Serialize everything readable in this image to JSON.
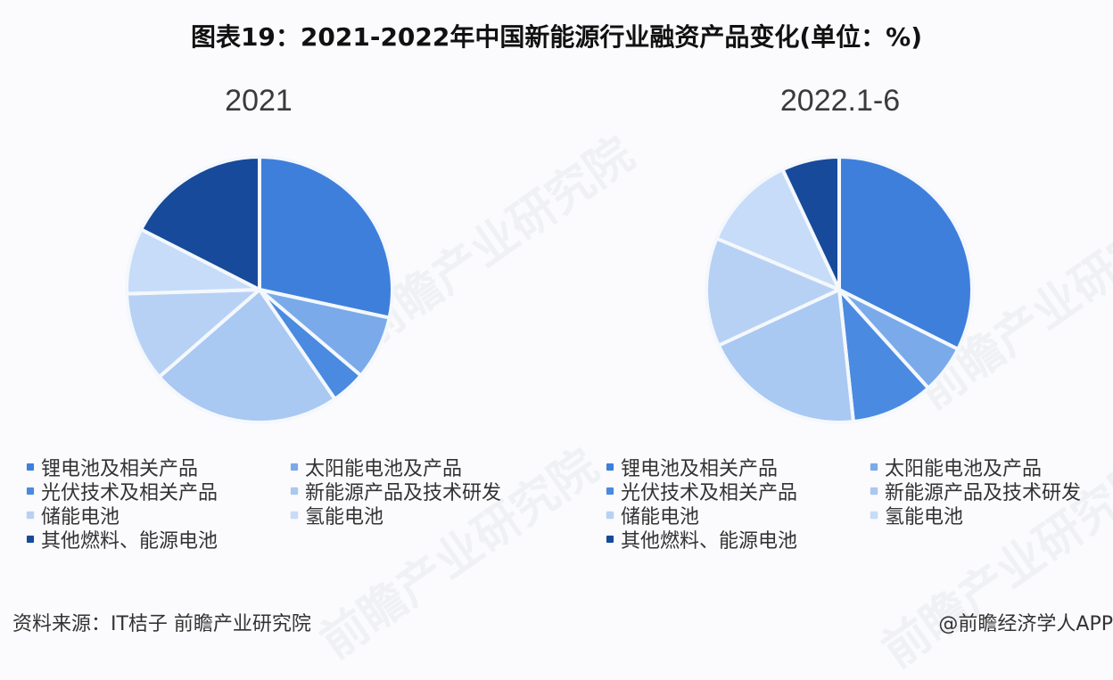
{
  "header": {
    "title": "图表19：2021-2022年中国新能源行业融资产品变化(单位：%)"
  },
  "legend": {
    "items": [
      {
        "label": "锂电池及相关产品",
        "color": "#3f7fdc"
      },
      {
        "label": "太阳能电池及产品",
        "color": "#7aaaea"
      },
      {
        "label": "光伏技术及相关产品",
        "color": "#4a8ae0"
      },
      {
        "label": "新能源产品及技术研发",
        "color": "#a9c8f2"
      },
      {
        "label": "储能电池",
        "color": "#b7d1f4"
      },
      {
        "label": "氢能电池",
        "color": "#c6dcf8"
      },
      {
        "label": "其他燃料、能源电池",
        "color": "#174a9a"
      }
    ]
  },
  "footer": {
    "source": "资料来源：IT桔子 前瞻产业研究院",
    "credit": "@前瞻经济学人APP"
  },
  "watermark": {
    "text": "前瞻产业研究院"
  },
  "chart_data": [
    {
      "type": "pie",
      "title": "2021",
      "unit": "%",
      "start_angle": "12 o'clock, clockwise",
      "categories": [
        "锂电池及相关产品",
        "太阳能电池及产品",
        "光伏技术及相关产品",
        "新能源产品及技术研发",
        "储能电池",
        "氢能电池",
        "其他燃料、能源电池"
      ],
      "values": [
        28.4,
        7.8,
        4.2,
        23.2,
        10.9,
        8.0,
        17.5
      ],
      "legend_position": "bottom",
      "data_labels": false
    },
    {
      "type": "pie",
      "title": "2022.1-6",
      "unit": "%",
      "start_angle": "12 o'clock, clockwise",
      "categories": [
        "锂电池及相关产品",
        "太阳能电池及产品",
        "光伏技术及相关产品",
        "新能源产品及技术研发",
        "储能电池",
        "氢能电池",
        "其他燃料、能源电池"
      ],
      "values": [
        32.4,
        5.9,
        10.0,
        19.8,
        13.2,
        11.7,
        7.0
      ],
      "legend_position": "bottom",
      "data_labels": false
    }
  ]
}
